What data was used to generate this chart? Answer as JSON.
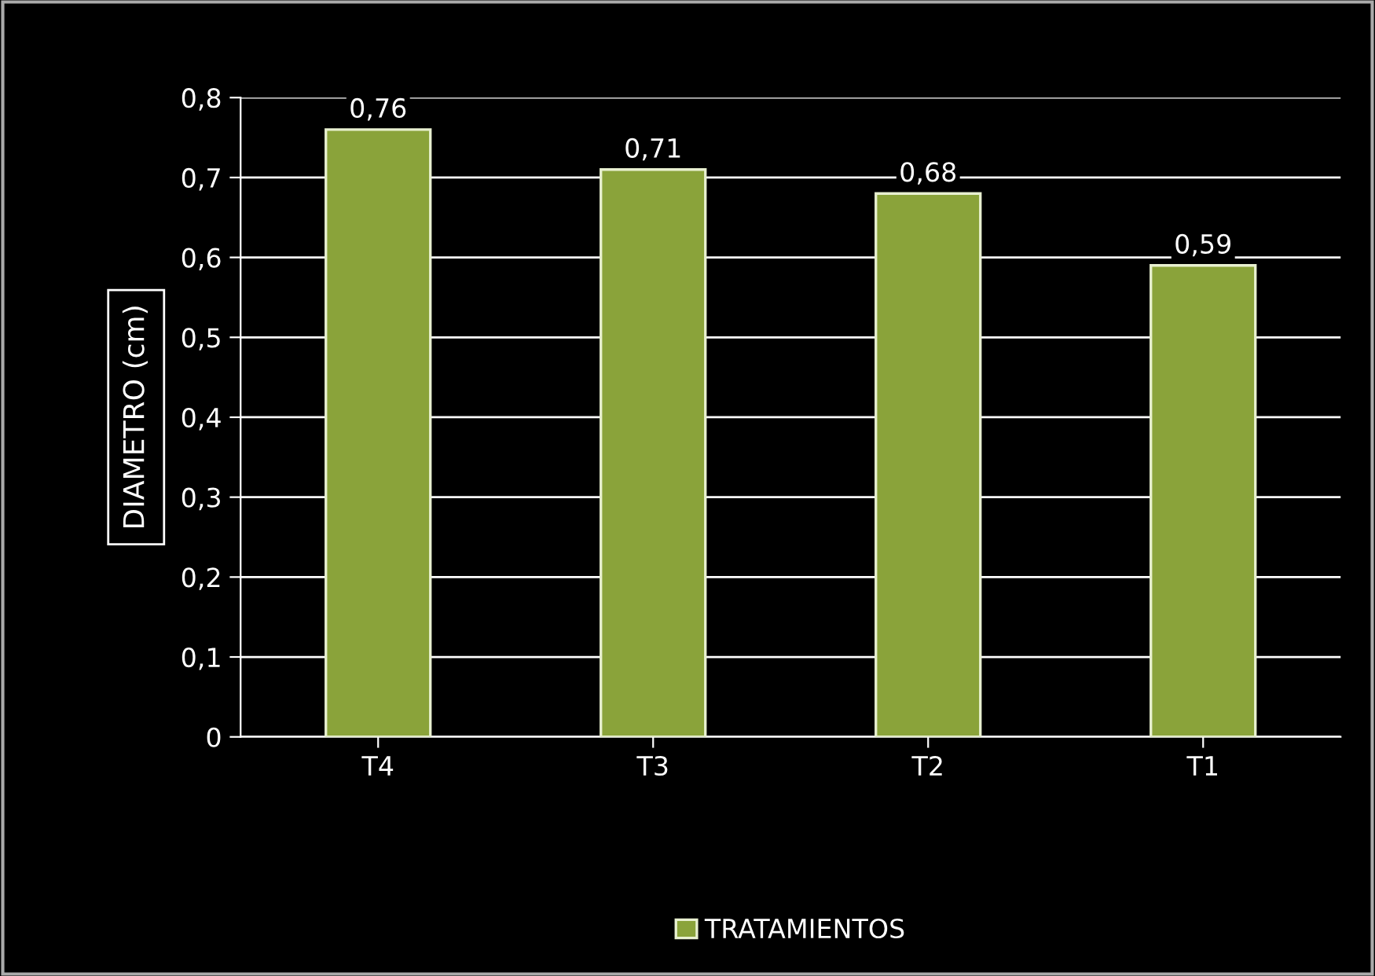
{
  "chart_data": {
    "type": "bar",
    "ylabel": "DIAMETRO (cm)",
    "categories": [
      "T4",
      "T3",
      "T2",
      "T1"
    ],
    "series": [
      {
        "name": "TRATAMIENTOS",
        "color": "#8aa33a",
        "values": [
          0.76,
          0.71,
          0.68,
          0.59
        ],
        "value_labels": [
          "0,76",
          "0,71",
          "0,68",
          "0,59"
        ]
      }
    ],
    "ylim": [
      0,
      0.8
    ],
    "yticks": [
      0,
      {
        "value": 0.1,
        "label": "0,1"
      },
      {
        "value": 0.2,
        "label": "0,2"
      },
      {
        "value": 0.3,
        "label": "0,3"
      },
      {
        "value": 0.4,
        "label": "0,4"
      },
      {
        "value": 0.5,
        "label": "0,5"
      },
      {
        "value": 0.6,
        "label": "0,6"
      },
      {
        "value": 0.7,
        "label": "0,7"
      },
      {
        "value": 0.8,
        "label": "0,8"
      }
    ],
    "grid": "y",
    "legend": "bottom"
  }
}
